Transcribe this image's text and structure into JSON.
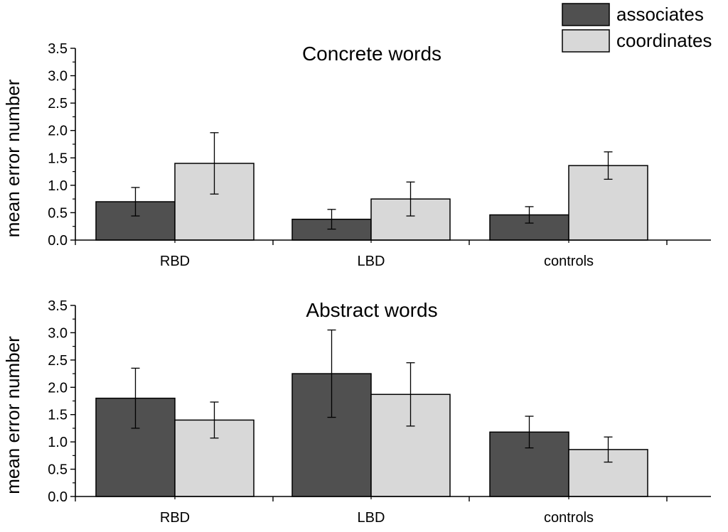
{
  "legend": {
    "entries": [
      {
        "label": "associates",
        "color": "#505050"
      },
      {
        "label": "coordinates",
        "color": "#d8d8d8"
      }
    ]
  },
  "chart_data": [
    {
      "type": "bar",
      "title": "Concrete words",
      "ylabel": "mean error number",
      "xlabel": "",
      "categories": [
        "RBD",
        "LBD",
        "controls"
      ],
      "ylim": [
        0,
        3.5
      ],
      "yticks": [
        "0.0",
        "0.5",
        "1.0",
        "1.5",
        "2.0",
        "2.5",
        "3.0",
        "3.5"
      ],
      "series": [
        {
          "name": "associates",
          "color": "#505050",
          "values": [
            0.7,
            0.38,
            0.46
          ],
          "errors": [
            0.26,
            0.18,
            0.15
          ]
        },
        {
          "name": "coordinates",
          "color": "#d8d8d8",
          "values": [
            1.4,
            0.75,
            1.36
          ],
          "errors": [
            0.56,
            0.31,
            0.25
          ]
        }
      ]
    },
    {
      "type": "bar",
      "title": "Abstract words",
      "ylabel": "mean error number",
      "xlabel": "",
      "categories": [
        "RBD",
        "LBD",
        "controls"
      ],
      "ylim": [
        0,
        3.5
      ],
      "yticks": [
        "0.0",
        "0.5",
        "1.0",
        "1.5",
        "2.0",
        "2.5",
        "3.0",
        "3.5"
      ],
      "series": [
        {
          "name": "associates",
          "color": "#505050",
          "values": [
            1.8,
            2.25,
            1.18
          ],
          "errors": [
            0.55,
            0.8,
            0.29
          ]
        },
        {
          "name": "coordinates",
          "color": "#d8d8d8",
          "values": [
            1.4,
            1.87,
            0.86
          ],
          "errors": [
            0.33,
            0.58,
            0.23
          ]
        }
      ]
    }
  ]
}
